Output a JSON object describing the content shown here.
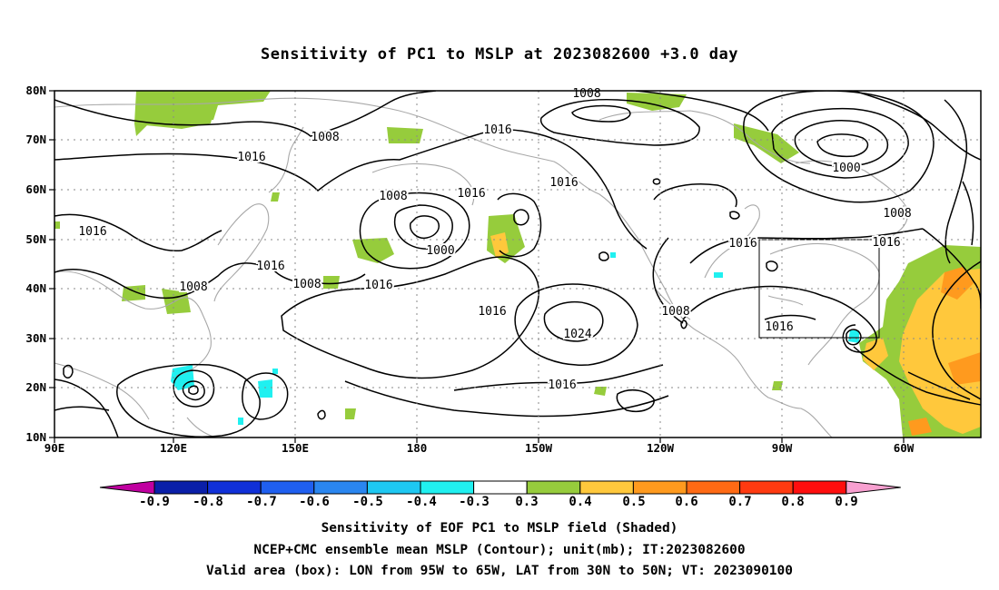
{
  "title": "Sensitivity of PC1 to MSLP at 2023082600 +3.0 day",
  "axes": {
    "lon_ticks": [
      "90E",
      "120E",
      "150E",
      "180",
      "150W",
      "120W",
      "90W",
      "60W"
    ],
    "lat_ticks": [
      "80N",
      "70N",
      "60N",
      "50N",
      "40N",
      "30N",
      "20N",
      "10N"
    ]
  },
  "contour_labels": [
    "1008",
    "1016",
    "1016",
    "1016",
    "1016",
    "1000",
    "1008",
    "1016",
    "1016",
    "1016",
    "1008",
    "1008",
    "1016",
    "1016",
    "1008",
    "1000",
    "1016",
    "1024",
    "1016",
    "1008",
    "1016",
    "1008",
    "1016",
    "1008"
  ],
  "colorbar": {
    "labels": [
      "-0.9",
      "-0.8",
      "-0.7",
      "-0.6",
      "-0.5",
      "-0.4",
      "-0.3",
      "0.3",
      "0.4",
      "0.5",
      "0.6",
      "0.7",
      "0.8",
      "0.9"
    ],
    "colors": [
      "#c000a0",
      "#0a1fa8",
      "#1030d8",
      "#1f5ff0",
      "#2a86f0",
      "#1ec8f2",
      "#20f0f0",
      "#ffffff",
      "#96cc3c",
      "#ffc83c",
      "#ff9a1e",
      "#ff6a14",
      "#ff3a10",
      "#ff0e0e",
      "#f8a0d0"
    ]
  },
  "captions": [
    "Sensitivity of EOF PC1 to MSLP field (Shaded)",
    "NCEP+CMC ensemble mean MSLP (Contour); unit(mb); IT:2023082600",
    "Valid area (box): LON from 95W to 65W, LAT from 30N to 50N; VT: 2023090100"
  ]
}
